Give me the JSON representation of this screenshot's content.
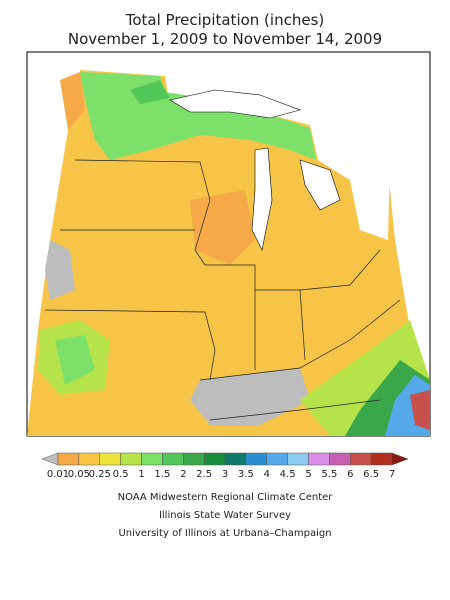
{
  "title": {
    "line1": "Total Precipitation (inches)",
    "line2": "November 1, 2009 to November 14, 2009"
  },
  "legend": {
    "labels": [
      "0.01",
      "0.05",
      "0.25",
      "0.5",
      "1",
      "1.5",
      "2",
      "2.5",
      "3",
      "3.5",
      "4",
      "4.5",
      "5",
      "5.5",
      "6",
      "6.5",
      "7"
    ],
    "colors": [
      "#bdbdbd",
      "#f5a947",
      "#f7c645",
      "#eee43c",
      "#b7e34a",
      "#7de06a",
      "#52c658",
      "#3aa84a",
      "#1b8c3b",
      "#0f7a6a",
      "#2a8fd0",
      "#56a9e8",
      "#8ccaf0",
      "#d890e8",
      "#c760b0",
      "#c8504a",
      "#b03020",
      "#8c1a10"
    ]
  },
  "credits": [
    "NOAA Midwestern Regional Climate Center",
    "Illinois State Water Survey",
    "University of Illinois at Urbana–Champaign"
  ]
}
